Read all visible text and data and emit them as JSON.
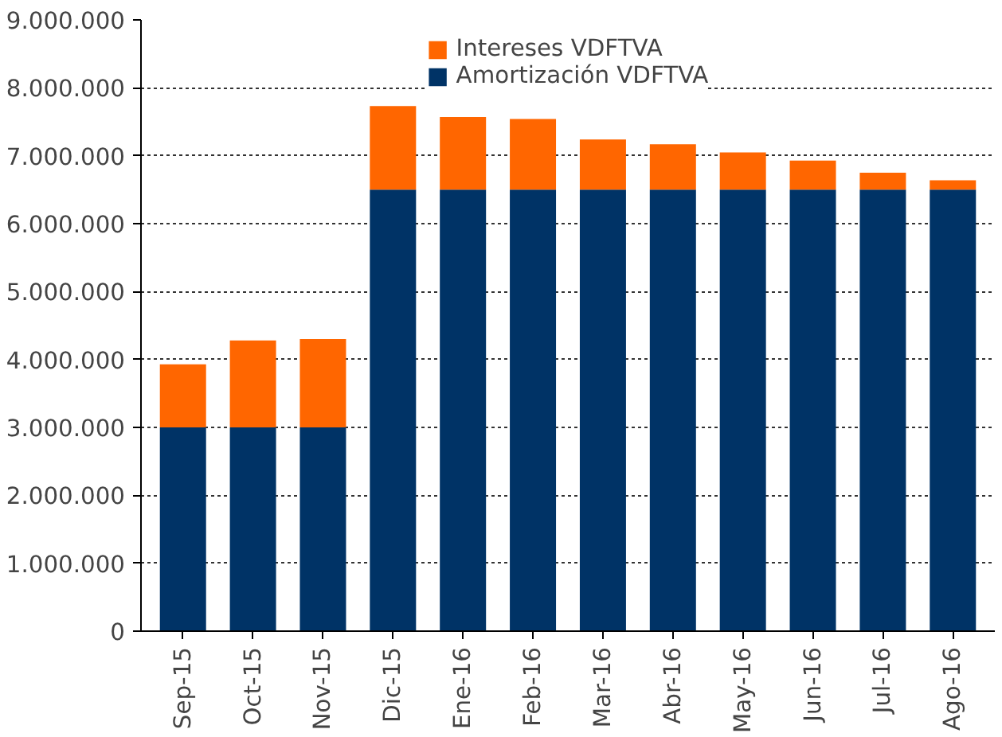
{
  "chart_data": {
    "type": "bar",
    "stacked": true,
    "categories": [
      "Sep-15",
      "Oct-15",
      "Nov-15",
      "Dic-15",
      "Ene-16",
      "Feb-16",
      "Mar-16",
      "Abr-16",
      "May-16",
      "Jun-16",
      "Jul-16",
      "Ago-16"
    ],
    "series": [
      {
        "name": "Amortización VDFTVA",
        "color": "#003366",
        "values": [
          3000000,
          3000000,
          3000000,
          6500000,
          6500000,
          6500000,
          6500000,
          6500000,
          6500000,
          6500000,
          6500000,
          6500000
        ]
      },
      {
        "name": "Intereses VDFTVA",
        "color": "#ff6600",
        "values": [
          930000,
          1280000,
          1300000,
          1230000,
          1070000,
          1040000,
          740000,
          670000,
          550000,
          430000,
          250000,
          140000
        ]
      }
    ],
    "ylim": [
      0,
      9000000
    ],
    "yticks": [
      0,
      {
        "value": 1000000,
        "label": "1.000.000"
      },
      {
        "value": 2000000,
        "label": "2.000.000"
      },
      {
        "value": 3000000,
        "label": "3.000.000"
      },
      {
        "value": 4000000,
        "label": "4.000.000"
      },
      {
        "value": 5000000,
        "label": "5.000.000"
      },
      {
        "value": 6000000,
        "label": "6.000.000"
      },
      {
        "value": 7000000,
        "label": "7.000.000"
      },
      {
        "value": 8000000,
        "label": "8.000.000"
      },
      {
        "value": 9000000,
        "label": "9.000.000"
      }
    ],
    "grid": "y",
    "legend": "top"
  }
}
